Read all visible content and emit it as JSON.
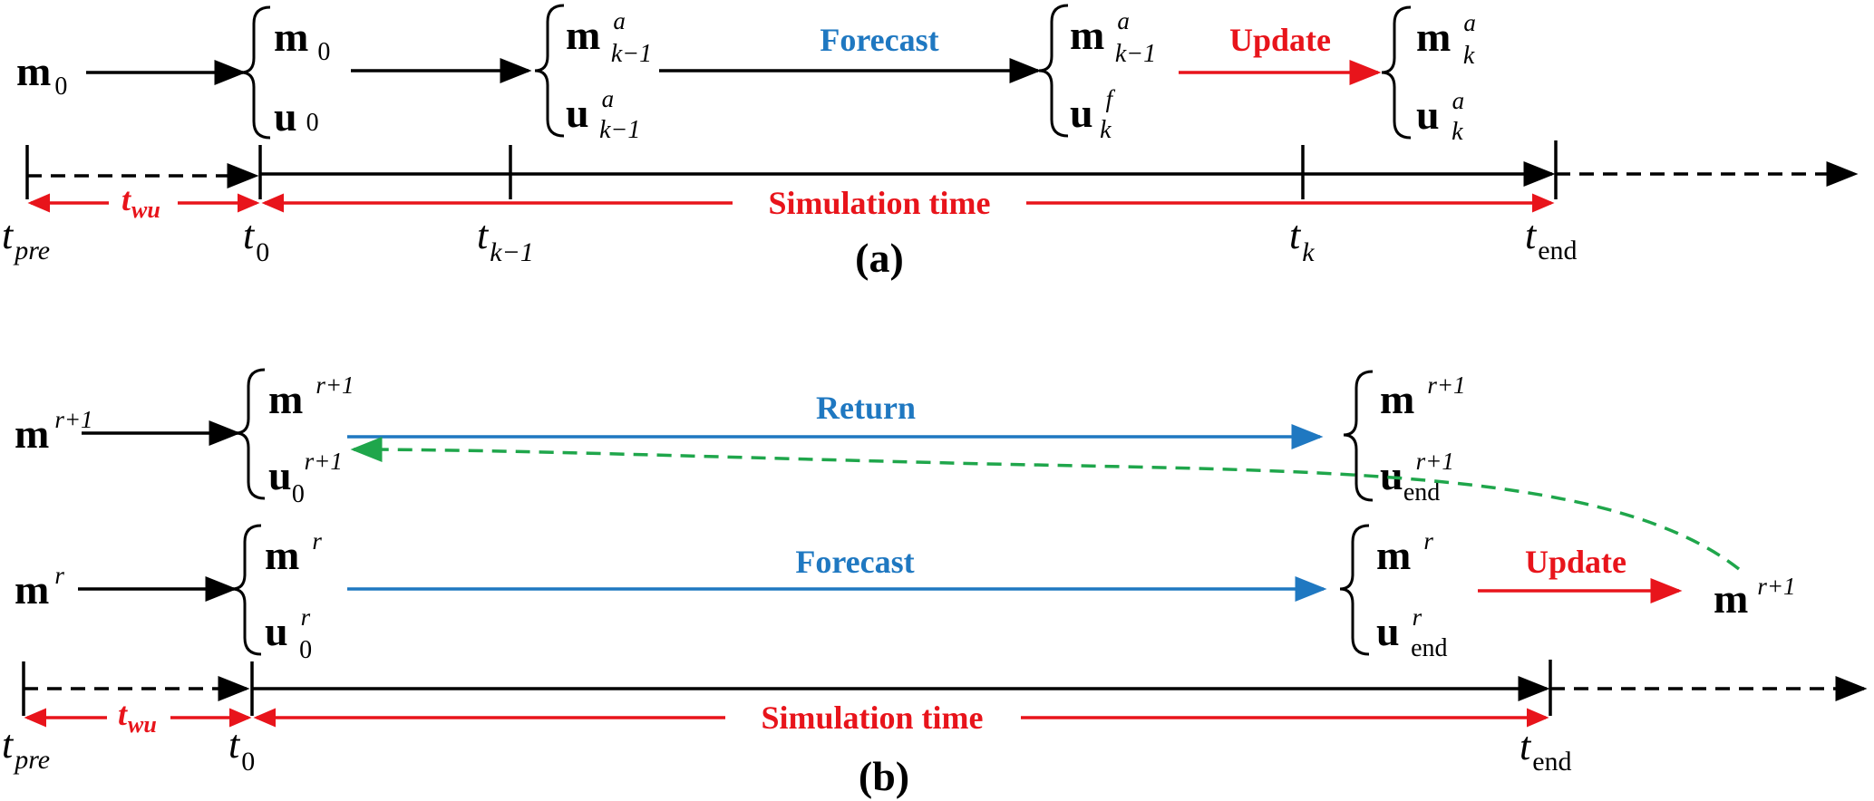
{
  "symbols": {
    "m": "m",
    "u": "u",
    "zero": "0",
    "a": "a",
    "f": "f",
    "k": "k",
    "k_minus_1": "k−1",
    "r": "r",
    "r_plus_1": "r+1",
    "end": "end",
    "pre": "pre",
    "wu": "wu",
    "t": "t"
  },
  "labels": {
    "forecast": "Forecast",
    "update": "Update",
    "return": "Return",
    "simulation_time": "Simulation time",
    "panel_a": "(a)",
    "panel_b": "(b)"
  },
  "colors": {
    "blue": "#1f78c1",
    "red": "#e8141b",
    "green": "#1fa64b",
    "black": "#000000"
  }
}
